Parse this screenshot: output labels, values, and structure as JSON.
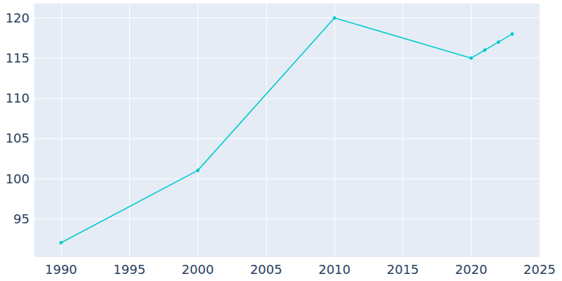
{
  "chart_data": {
    "type": "line",
    "x": [
      1990,
      2000,
      2010,
      2020,
      2021,
      2022,
      2023
    ],
    "values": [
      92,
      101,
      120,
      115,
      116,
      117,
      118
    ],
    "color": "#00cccc",
    "marker": "circle",
    "xlim": [
      1988,
      2025
    ],
    "xticks": [
      1990,
      1995,
      2000,
      2005,
      2010,
      2015,
      2020,
      2025
    ],
    "ylim": [
      90.2,
      121.8
    ],
    "yticks": [
      95,
      100,
      105,
      110,
      115,
      120
    ],
    "grid": true
  }
}
